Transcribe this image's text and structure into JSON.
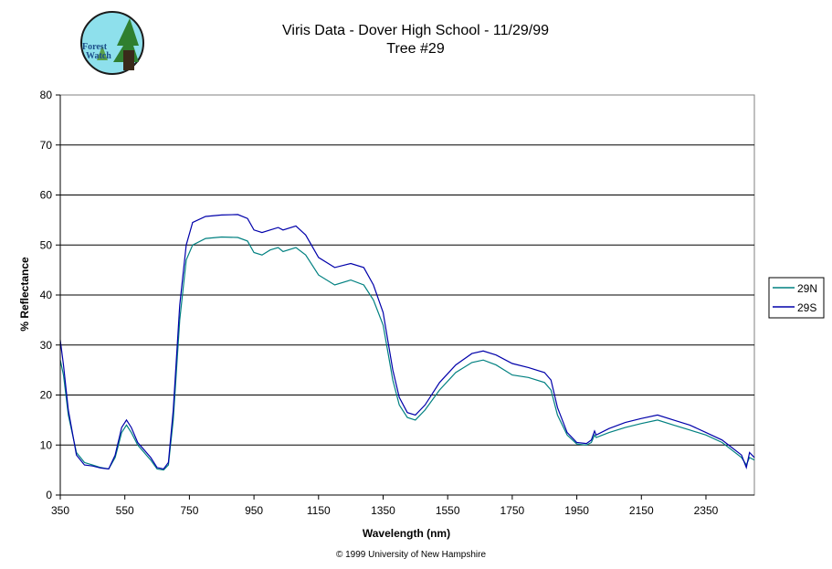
{
  "logo": {
    "text_line1": "Forest",
    "text_line2": "Watch"
  },
  "footer": "© 1999 University of New Hampshire",
  "chart_data": {
    "type": "line",
    "title": "Viris Data - Dover High School - 11/29/99",
    "subtitle": "Tree #29",
    "xlabel": "Wavelength (nm)",
    "ylabel": "% Reflectance",
    "xlim": [
      350,
      2500
    ],
    "ylim": [
      0,
      80
    ],
    "x_ticks": [
      350,
      550,
      750,
      950,
      1150,
      1350,
      1550,
      1750,
      1950,
      2150,
      2350
    ],
    "y_ticks": [
      0,
      10,
      20,
      30,
      40,
      50,
      60,
      70,
      80
    ],
    "grid": "horizontal major",
    "legend_position": "right",
    "series": [
      {
        "name": "29N",
        "color": "#008080",
        "points": [
          [
            350,
            27
          ],
          [
            360,
            24
          ],
          [
            375,
            16
          ],
          [
            400,
            8.5
          ],
          [
            425,
            6.5
          ],
          [
            450,
            6
          ],
          [
            475,
            5.5
          ],
          [
            500,
            5.2
          ],
          [
            520,
            7.5
          ],
          [
            540,
            12.5
          ],
          [
            555,
            14
          ],
          [
            570,
            12.5
          ],
          [
            590,
            10
          ],
          [
            610,
            8.5
          ],
          [
            630,
            7
          ],
          [
            650,
            5.2
          ],
          [
            670,
            5
          ],
          [
            685,
            6
          ],
          [
            700,
            15
          ],
          [
            720,
            35
          ],
          [
            740,
            47
          ],
          [
            760,
            50
          ],
          [
            800,
            51.3
          ],
          [
            850,
            51.6
          ],
          [
            900,
            51.5
          ],
          [
            930,
            50.8
          ],
          [
            950,
            48.5
          ],
          [
            975,
            48
          ],
          [
            1000,
            49
          ],
          [
            1025,
            49.5
          ],
          [
            1040,
            48.7
          ],
          [
            1080,
            49.5
          ],
          [
            1110,
            48
          ],
          [
            1150,
            44
          ],
          [
            1200,
            42
          ],
          [
            1250,
            43
          ],
          [
            1290,
            42
          ],
          [
            1320,
            39
          ],
          [
            1350,
            34
          ],
          [
            1380,
            23
          ],
          [
            1400,
            18
          ],
          [
            1425,
            15.5
          ],
          [
            1450,
            15
          ],
          [
            1480,
            17
          ],
          [
            1525,
            21
          ],
          [
            1575,
            24.5
          ],
          [
            1625,
            26.5
          ],
          [
            1660,
            27
          ],
          [
            1700,
            26
          ],
          [
            1750,
            24
          ],
          [
            1800,
            23.5
          ],
          [
            1850,
            22.5
          ],
          [
            1870,
            21
          ],
          [
            1890,
            16
          ],
          [
            1920,
            12
          ],
          [
            1950,
            10.2
          ],
          [
            1980,
            10
          ],
          [
            1995,
            10.5
          ],
          [
            2005,
            12
          ],
          [
            2010,
            11.5
          ],
          [
            2050,
            12.5
          ],
          [
            2100,
            13.5
          ],
          [
            2150,
            14.3
          ],
          [
            2200,
            15
          ],
          [
            2250,
            14
          ],
          [
            2300,
            13
          ],
          [
            2350,
            12
          ],
          [
            2400,
            10.5
          ],
          [
            2430,
            9
          ],
          [
            2460,
            7.5
          ],
          [
            2475,
            6
          ],
          [
            2485,
            7.5
          ],
          [
            2500,
            7
          ]
        ]
      },
      {
        "name": "29S",
        "color": "#0000aa",
        "points": [
          [
            350,
            31
          ],
          [
            360,
            26
          ],
          [
            375,
            17
          ],
          [
            400,
            8
          ],
          [
            425,
            6
          ],
          [
            450,
            5.8
          ],
          [
            475,
            5.4
          ],
          [
            500,
            5.2
          ],
          [
            520,
            8
          ],
          [
            540,
            13.5
          ],
          [
            555,
            15
          ],
          [
            570,
            13.5
          ],
          [
            590,
            10.5
          ],
          [
            610,
            9
          ],
          [
            630,
            7.5
          ],
          [
            650,
            5.5
          ],
          [
            670,
            5.2
          ],
          [
            685,
            6.5
          ],
          [
            700,
            17
          ],
          [
            720,
            38
          ],
          [
            740,
            50
          ],
          [
            760,
            54.5
          ],
          [
            800,
            55.7
          ],
          [
            850,
            56
          ],
          [
            900,
            56.1
          ],
          [
            930,
            55.3
          ],
          [
            950,
            53
          ],
          [
            975,
            52.5
          ],
          [
            1000,
            53
          ],
          [
            1025,
            53.5
          ],
          [
            1040,
            53
          ],
          [
            1080,
            53.8
          ],
          [
            1110,
            52
          ],
          [
            1150,
            47.5
          ],
          [
            1200,
            45.5
          ],
          [
            1250,
            46.3
          ],
          [
            1290,
            45.5
          ],
          [
            1320,
            42
          ],
          [
            1350,
            36.5
          ],
          [
            1380,
            25
          ],
          [
            1400,
            19.5
          ],
          [
            1425,
            16.5
          ],
          [
            1450,
            16
          ],
          [
            1480,
            18
          ],
          [
            1525,
            22.5
          ],
          [
            1575,
            26
          ],
          [
            1625,
            28.3
          ],
          [
            1660,
            28.8
          ],
          [
            1700,
            28
          ],
          [
            1750,
            26.3
          ],
          [
            1800,
            25.5
          ],
          [
            1850,
            24.5
          ],
          [
            1870,
            23
          ],
          [
            1890,
            17.5
          ],
          [
            1920,
            12.5
          ],
          [
            1950,
            10.5
          ],
          [
            1980,
            10.3
          ],
          [
            1995,
            11
          ],
          [
            2005,
            12.8
          ],
          [
            2010,
            12
          ],
          [
            2050,
            13.3
          ],
          [
            2100,
            14.5
          ],
          [
            2150,
            15.3
          ],
          [
            2200,
            16
          ],
          [
            2250,
            15
          ],
          [
            2300,
            14
          ],
          [
            2350,
            12.5
          ],
          [
            2400,
            11
          ],
          [
            2430,
            9.5
          ],
          [
            2460,
            8
          ],
          [
            2475,
            5.5
          ],
          [
            2485,
            8.5
          ],
          [
            2500,
            7.5
          ]
        ]
      }
    ]
  }
}
